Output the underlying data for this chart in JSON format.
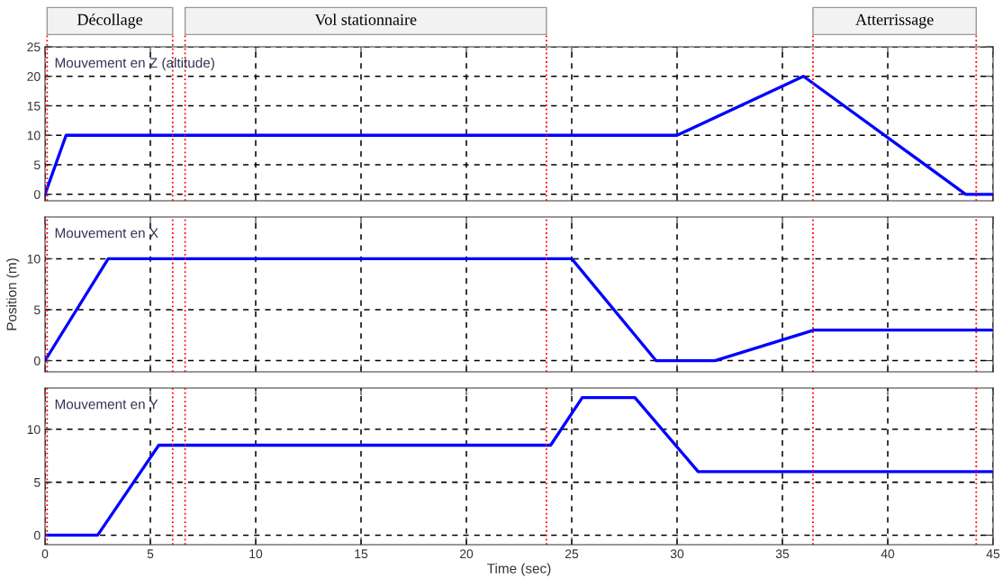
{
  "chart_data": [
    {
      "type": "line",
      "title": "Mouvement en Z (altitude)",
      "xlim": [
        0,
        45
      ],
      "xticks": [
        0,
        5,
        10,
        15,
        20,
        25,
        30,
        35,
        40,
        45
      ],
      "ylim": [
        -1.1,
        25
      ],
      "yticks": [
        0,
        5,
        10,
        15,
        20,
        25
      ],
      "grid": true,
      "tick_labels": "y",
      "line_style": "solid",
      "marker": "none",
      "series": [
        {
          "color": "#0000ff",
          "x": [
            0,
            1,
            30,
            36,
            43.7,
            45
          ],
          "values": [
            0,
            10,
            10,
            20,
            0,
            0
          ]
        }
      ],
      "ref_lines": [
        {
          "axis": "x",
          "value": 0.1,
          "color": "#ff0000",
          "line_style": "dotted"
        },
        {
          "axis": "x",
          "value": 6.06,
          "color": "#ff0000",
          "line_style": "dotted"
        },
        {
          "axis": "x",
          "value": 6.65,
          "color": "#ff0000",
          "line_style": "dotted"
        },
        {
          "axis": "x",
          "value": 23.8,
          "color": "#ff0000",
          "line_style": "dotted"
        },
        {
          "axis": "x",
          "value": 36.45,
          "color": "#ff0000",
          "line_style": "dotted"
        },
        {
          "axis": "x",
          "value": 44.2,
          "color": "#ff0000",
          "line_style": "dotted"
        }
      ],
      "annotations": [
        "Décollage",
        "Vol stationnaire",
        "Atterrissage"
      ]
    },
    {
      "type": "line",
      "title": "Mouvement en X",
      "ylabel": "Position (m)",
      "xlim": [
        0,
        45
      ],
      "xticks": [
        0,
        5,
        10,
        15,
        20,
        25,
        30,
        35,
        40,
        45
      ],
      "ylim": [
        -1.1,
        14.1
      ],
      "yticks": [
        0,
        5,
        10
      ],
      "grid": true,
      "tick_labels": "y",
      "line_style": "solid",
      "marker": "none",
      "series": [
        {
          "color": "#0000ff",
          "x": [
            0,
            3,
            25,
            29,
            31.8,
            36.5,
            45
          ],
          "values": [
            0,
            10,
            10,
            0,
            0,
            3,
            3
          ]
        }
      ],
      "ref_lines": [
        {
          "axis": "x",
          "value": 0.1,
          "color": "#ff0000",
          "line_style": "dotted"
        },
        {
          "axis": "x",
          "value": 6.06,
          "color": "#ff0000",
          "line_style": "dotted"
        },
        {
          "axis": "x",
          "value": 6.65,
          "color": "#ff0000",
          "line_style": "dotted"
        },
        {
          "axis": "x",
          "value": 23.8,
          "color": "#ff0000",
          "line_style": "dotted"
        },
        {
          "axis": "x",
          "value": 36.45,
          "color": "#ff0000",
          "line_style": "dotted"
        },
        {
          "axis": "x",
          "value": 44.2,
          "color": "#ff0000",
          "line_style": "dotted"
        }
      ]
    },
    {
      "type": "line",
      "title": "Mouvement en Y",
      "xlabel": "Time (sec)",
      "xlim": [
        0,
        45
      ],
      "xticks": [
        0,
        5,
        10,
        15,
        20,
        25,
        30,
        35,
        40,
        45
      ],
      "ylim": [
        -0.9,
        13.9
      ],
      "yticks": [
        0,
        5,
        10
      ],
      "grid": true,
      "line_style": "solid",
      "marker": "none",
      "series": [
        {
          "color": "#0000ff",
          "x": [
            0,
            2.5,
            5.4,
            24,
            25.5,
            28,
            31,
            45
          ],
          "values": [
            0,
            0,
            8.5,
            8.5,
            13,
            13,
            6,
            6
          ]
        }
      ],
      "ref_lines": [
        {
          "axis": "x",
          "value": 0.1,
          "color": "#ff0000",
          "line_style": "dotted"
        },
        {
          "axis": "x",
          "value": 6.06,
          "color": "#ff0000",
          "line_style": "dotted"
        },
        {
          "axis": "x",
          "value": 6.65,
          "color": "#ff0000",
          "line_style": "dotted"
        },
        {
          "axis": "x",
          "value": 23.8,
          "color": "#ff0000",
          "line_style": "dotted"
        },
        {
          "axis": "x",
          "value": 36.45,
          "color": "#ff0000",
          "line_style": "dotted"
        },
        {
          "axis": "x",
          "value": 44.2,
          "color": "#ff0000",
          "line_style": "dotted"
        }
      ]
    }
  ]
}
